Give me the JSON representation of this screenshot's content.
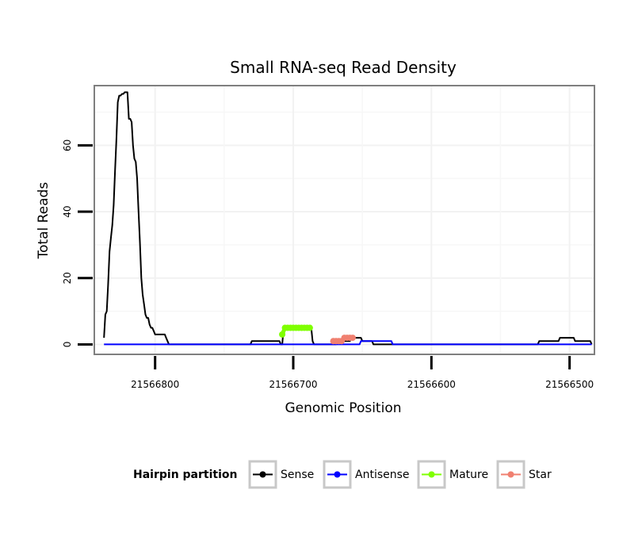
{
  "chart_data": {
    "type": "line",
    "title": "Small RNA-seq Read Density",
    "xlabel": "Genomic Position",
    "ylabel": "Total Reads",
    "x_reversed": true,
    "xlim": [
      21566844,
      21566482
    ],
    "ylim": [
      -3,
      78
    ],
    "x_ticks": [
      21566800,
      21566700,
      21566600,
      21566500
    ],
    "x_tick_labels": [
      "21566800",
      "21566700",
      "21566600",
      "21566500"
    ],
    "y_ticks": [
      0,
      20,
      40,
      60
    ],
    "y_tick_labels": [
      "0",
      "20",
      "40",
      "60"
    ],
    "grid": true,
    "legend": {
      "title": "Hairpin partition",
      "position": "bottom",
      "entries": [
        "Sense",
        "Antisense",
        "Mature",
        "Star"
      ]
    },
    "series": [
      {
        "name": "Sense",
        "color": "#000000",
        "kind": "line",
        "points": [
          [
            21566837,
            2
          ],
          [
            21566836,
            9
          ],
          [
            21566835,
            10
          ],
          [
            21566834,
            18
          ],
          [
            21566833,
            28
          ],
          [
            21566832,
            32
          ],
          [
            21566831,
            36
          ],
          [
            21566830,
            42
          ],
          [
            21566829,
            52
          ],
          [
            21566828,
            62
          ],
          [
            21566827,
            73
          ],
          [
            21566826,
            75
          ],
          [
            21566825,
            75
          ],
          [
            21566824,
            75.5
          ],
          [
            21566823,
            75.5
          ],
          [
            21566822,
            76
          ],
          [
            21566821,
            76
          ],
          [
            21566820,
            76
          ],
          [
            21566819,
            68
          ],
          [
            21566818,
            68
          ],
          [
            21566817,
            67
          ],
          [
            21566816,
            60
          ],
          [
            21566815,
            56
          ],
          [
            21566814,
            55
          ],
          [
            21566813,
            50
          ],
          [
            21566812,
            40
          ],
          [
            21566811,
            31
          ],
          [
            21566810,
            20
          ],
          [
            21566809,
            15
          ],
          [
            21566808,
            12
          ],
          [
            21566807,
            9
          ],
          [
            21566806,
            8
          ],
          [
            21566805,
            8
          ],
          [
            21566804,
            6
          ],
          [
            21566803,
            5
          ],
          [
            21566802,
            5
          ],
          [
            21566801,
            4
          ],
          [
            21566800,
            3
          ],
          [
            21566799,
            3
          ],
          [
            21566798,
            3
          ],
          [
            21566797,
            3
          ],
          [
            21566796,
            3
          ],
          [
            21566795,
            3
          ],
          [
            21566794,
            3
          ],
          [
            21566793,
            3
          ],
          [
            21566792,
            2
          ],
          [
            21566791,
            1
          ],
          [
            21566790,
            0
          ],
          [
            21566731,
            0
          ],
          [
            21566730,
            1
          ],
          [
            21566710,
            1
          ],
          [
            21566709,
            0
          ],
          [
            21566708,
            0
          ],
          [
            21566707,
            5
          ],
          [
            21566687,
            5
          ],
          [
            21566686,
            1
          ],
          [
            21566685,
            0
          ],
          [
            21566669,
            0
          ],
          [
            21566668,
            1
          ],
          [
            21566659,
            1
          ],
          [
            21566658,
            2
          ],
          [
            21566651,
            2
          ],
          [
            21566650,
            1
          ],
          [
            21566643,
            1
          ],
          [
            21566642,
            0
          ],
          [
            21566523,
            0
          ],
          [
            21566522,
            1
          ],
          [
            21566508,
            1
          ],
          [
            21566507,
            2
          ],
          [
            21566497,
            2
          ],
          [
            21566496,
            1
          ],
          [
            21566485,
            1
          ],
          [
            21566484,
            0
          ]
        ]
      },
      {
        "name": "Antisense",
        "color": "#0000ff",
        "kind": "line",
        "points": [
          [
            21566837,
            0
          ],
          [
            21566652,
            0
          ],
          [
            21566651,
            1
          ],
          [
            21566629,
            1
          ],
          [
            21566628,
            0
          ],
          [
            21566484,
            0
          ]
        ]
      },
      {
        "name": "Mature",
        "color": "#7fff00",
        "kind": "points",
        "points": [
          [
            21566708,
            3
          ],
          [
            21566706,
            5
          ],
          [
            21566704,
            5
          ],
          [
            21566702,
            5
          ],
          [
            21566700,
            5
          ],
          [
            21566698,
            5
          ],
          [
            21566696,
            5
          ],
          [
            21566694,
            5
          ],
          [
            21566692,
            5
          ],
          [
            21566690,
            5
          ],
          [
            21566688,
            5
          ]
        ]
      },
      {
        "name": "Star",
        "color": "#f08070",
        "kind": "points",
        "points": [
          [
            21566671,
            1
          ],
          [
            21566669,
            1
          ],
          [
            21566667,
            1
          ],
          [
            21566665,
            1
          ],
          [
            21566663,
            2
          ],
          [
            21566661,
            2
          ],
          [
            21566659,
            2
          ],
          [
            21566657,
            2
          ]
        ]
      }
    ]
  }
}
